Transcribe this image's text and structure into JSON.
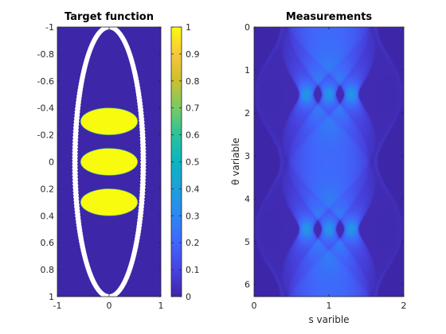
{
  "figure": {
    "colormap": "parula",
    "background": "#ffffff"
  },
  "chart_data": [
    {
      "type": "heatmap",
      "title": "Target function",
      "xlabel": "",
      "ylabel": "",
      "xlim": [
        -1,
        1
      ],
      "ylim": [
        -1,
        1
      ],
      "y_direction": "reversed",
      "xticks": [
        -1,
        0,
        1
      ],
      "yticks": [
        -1,
        -0.8,
        -0.6,
        -0.4,
        -0.2,
        0,
        0.2,
        0.4,
        0.6,
        0.8,
        1
      ],
      "xtick_labels": [
        "-1",
        "0",
        "1"
      ],
      "ytick_labels": [
        "-1",
        "-0.8",
        "-0.6",
        "-0.4",
        "-0.2",
        "0",
        "0.2",
        "0.4",
        "0.6",
        "0.8",
        "1"
      ],
      "background_value": 0,
      "shapes": [
        {
          "kind": "ellipse-ring",
          "center": [
            0,
            0
          ],
          "radii": [
            0.66,
            1.0
          ],
          "value": 1,
          "color": "#ffffff"
        },
        {
          "kind": "ellipse",
          "center": [
            0,
            -0.3
          ],
          "radii": [
            0.55,
            0.1
          ],
          "value": 1
        },
        {
          "kind": "ellipse",
          "center": [
            0,
            0
          ],
          "radii": [
            0.55,
            0.1
          ],
          "value": 1
        },
        {
          "kind": "ellipse",
          "center": [
            0,
            0.3
          ],
          "radii": [
            0.55,
            0.1
          ],
          "value": 1
        }
      ],
      "colorbar": {
        "limits": [
          0,
          1
        ],
        "ticks": [
          0,
          0.1,
          0.2,
          0.3,
          0.4,
          0.5,
          0.6,
          0.7,
          0.8,
          0.9,
          1
        ],
        "tick_labels": [
          "0",
          "0.1",
          "0.2",
          "0.3",
          "0.4",
          "0.5",
          "0.6",
          "0.7",
          "0.8",
          "0.9",
          "1"
        ]
      }
    },
    {
      "type": "heatmap",
      "title": "Measurements",
      "xlabel": "s varible",
      "ylabel": "θ variable",
      "xlim": [
        0,
        2
      ],
      "ylim": [
        0,
        6.283
      ],
      "y_direction": "reversed",
      "xticks": [
        0,
        1,
        2
      ],
      "yticks": [
        0,
        1,
        2,
        3,
        4,
        5,
        6
      ],
      "xtick_labels": [
        "0",
        "1",
        "2"
      ],
      "ytick_labels": [
        "0",
        "1",
        "2",
        "3",
        "4",
        "5",
        "6"
      ],
      "background_value": 0,
      "description_of_pattern": "sinogram: data band between s≈0.25 and s≈1.75, narrowest near θ=1.4 and θ=4.5, widest near θ=0, θ=3.14 and θ=6.28; bright chevron curves from the three inner ellipses"
    }
  ]
}
